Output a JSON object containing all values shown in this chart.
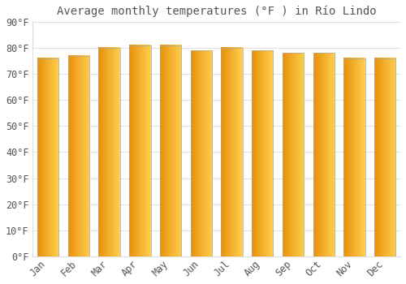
{
  "title": "Average monthly temperatures (°F ) in Río Lindo",
  "months": [
    "Jan",
    "Feb",
    "Mar",
    "Apr",
    "May",
    "Jun",
    "Jul",
    "Aug",
    "Sep",
    "Oct",
    "Nov",
    "Dec"
  ],
  "values": [
    76,
    77,
    80,
    81,
    81,
    79,
    80,
    79,
    78,
    78,
    76,
    76
  ],
  "bar_color_left": "#E8900A",
  "bar_color_right": "#FFD050",
  "background_color": "#FFFFFF",
  "grid_color": "#DDDDDD",
  "text_color": "#555555",
  "ylim": [
    0,
    90
  ],
  "yticks": [
    0,
    10,
    20,
    30,
    40,
    50,
    60,
    70,
    80,
    90
  ],
  "ytick_labels": [
    "0°F",
    "10°F",
    "20°F",
    "30°F",
    "40°F",
    "50°F",
    "60°F",
    "70°F",
    "80°F",
    "90°F"
  ],
  "title_fontsize": 10,
  "tick_fontsize": 8.5,
  "figsize": [
    5.0,
    3.5
  ],
  "dpi": 100
}
